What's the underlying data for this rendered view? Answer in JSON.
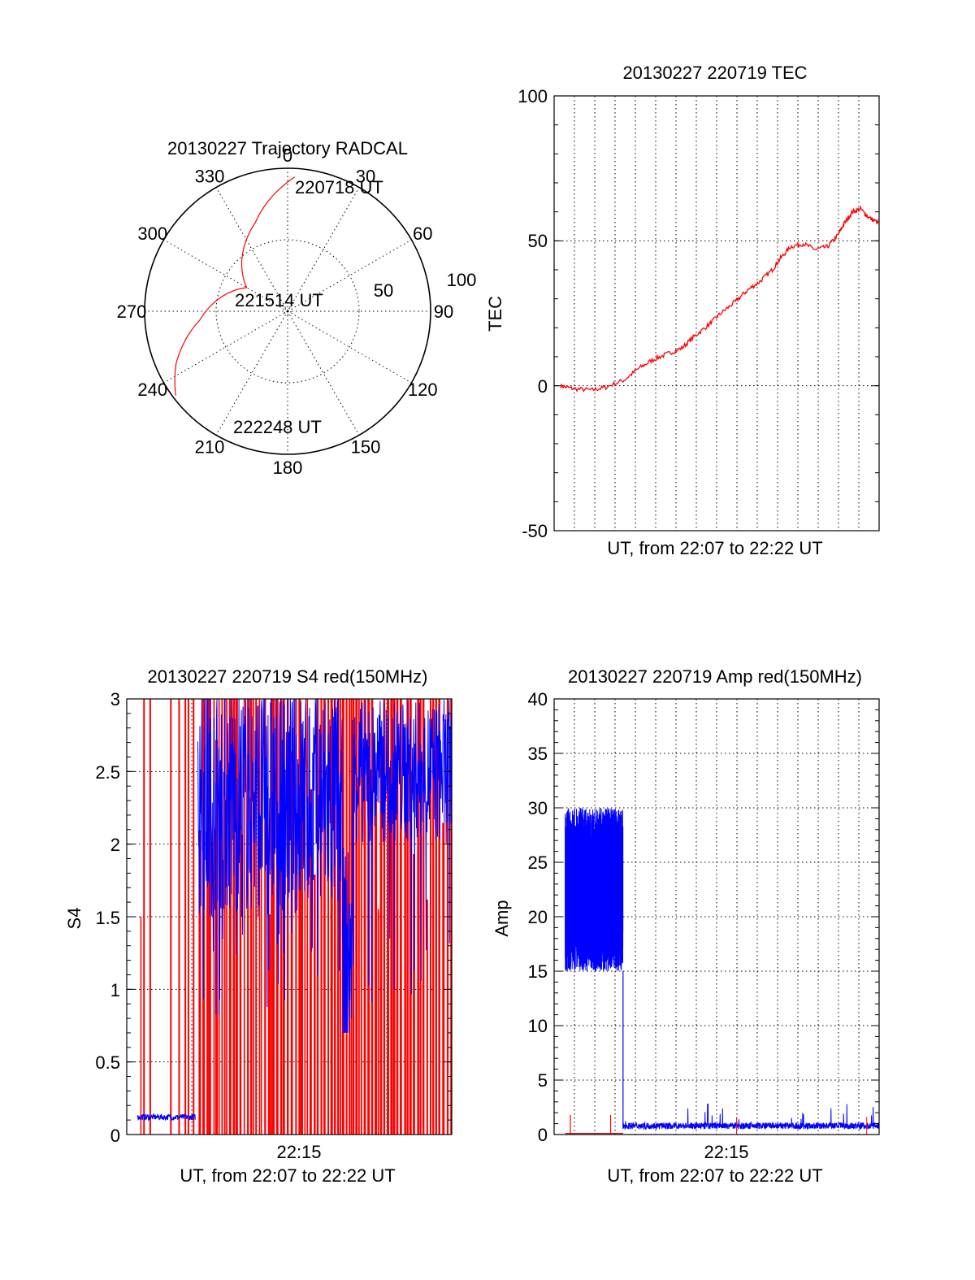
{
  "polar": {
    "title": "20130227 Trajectory RADCAL",
    "azimuth_labels": [
      "0",
      "30",
      "60",
      "90",
      "120",
      "150",
      "180",
      "210",
      "240",
      "270",
      "300",
      "330"
    ],
    "radial_labels": [
      "50",
      "100"
    ],
    "time_labels": {
      "start": "220718 UT",
      "mid": "221514 UT",
      "end": "222248 UT"
    },
    "line_color": "#ff0000"
  },
  "tec": {
    "title": "20130227 220719 TEC",
    "ylabel": "TEC",
    "xlabel": "UT, from 22:07 to 22:22 UT",
    "y_ticks": [
      "100",
      "50",
      "0",
      "-50"
    ],
    "line_color": "#ff0000"
  },
  "s4": {
    "title": "20130227 220719 S4 red(150MHz)",
    "ylabel": "S4",
    "xlabel": "UT, from 22:07 to 22:22 UT",
    "x_tick": "22:15",
    "y_ticks": [
      "3",
      "2.5",
      "2",
      "1.5",
      "1",
      "0.5",
      "0"
    ]
  },
  "amp": {
    "title": "20130227 220719 Amp red(150MHz)",
    "ylabel": "Amp",
    "xlabel": "UT, from 22:07 to 22:22 UT",
    "x_tick": "22:15",
    "y_ticks": [
      "40",
      "35",
      "30",
      "25",
      "20",
      "15",
      "10",
      "5",
      "0"
    ]
  },
  "chart_data": [
    {
      "type": "line",
      "subtype": "polar-trajectory",
      "title": "20130227 Trajectory RADCAL",
      "theta_ticks_deg": [
        0,
        30,
        60,
        90,
        120,
        150,
        180,
        210,
        240,
        270,
        300,
        330
      ],
      "r_ticks": [
        50,
        100
      ],
      "series": [
        {
          "color": "#ff0000",
          "points_az_deg_r": [
            [
              3,
              94
            ],
            [
              340,
              66
            ],
            [
              300,
              33
            ],
            [
              264,
              62
            ],
            [
              245,
              86
            ],
            [
              233,
              98
            ]
          ]
        }
      ],
      "annotations": [
        "220718 UT",
        "221514 UT",
        "222248 UT"
      ]
    },
    {
      "type": "line",
      "title": "20130227 220719 TEC",
      "xlabel": "UT, from 22:07 to 22:22 UT",
      "ylabel": "TEC",
      "xlim": [
        "22:07:19",
        "22:22:48"
      ],
      "ylim": [
        -50,
        100
      ],
      "grid": true,
      "series": [
        {
          "color": "#ff0000",
          "x_min_after_2207": [
            0,
            0.6,
            1.5,
            2.2,
            3.1,
            3.8,
            4.5,
            5.2,
            5.9,
            6.5,
            7.2,
            7.8,
            8.5,
            9.1,
            9.7,
            10.3,
            10.7,
            11.2,
            11.8,
            12.4,
            13.0,
            13.5,
            13.8,
            14.2,
            14.6,
            15.0,
            15.5
          ],
          "y": [
            0,
            -1,
            -1.5,
            -0.5,
            2,
            6,
            9,
            11,
            13,
            17,
            21,
            25,
            29,
            33,
            36,
            40,
            44,
            48,
            49,
            47,
            48,
            52,
            56,
            60,
            61,
            58,
            56
          ]
        }
      ]
    },
    {
      "type": "line",
      "title": "20130227 220719 S4 red(150MHz)",
      "xlabel": "UT, from 22:07 to 22:22 UT",
      "ylabel": "S4",
      "ylim": [
        0,
        3
      ],
      "x_ticks": [
        "22:15"
      ],
      "grid": true,
      "series": [
        {
          "color": "#0000ff",
          "segments": [
            {
              "x_min_after_2207": [
                0.3,
                3.1
              ],
              "level": 0.12
            },
            {
              "x_min_after_2207": [
                3.2,
                10.6
              ],
              "level_range": [
                0.8,
                3.0
              ]
            },
            {
              "x_min_after_2207": [
                10.6,
                15.5
              ],
              "level_range": [
                1.6,
                3.0
              ]
            }
          ]
        },
        {
          "color": "#ff0000",
          "note": "dense vertical spikes 0 to 3 across the full time range"
        }
      ]
    },
    {
      "type": "line",
      "title": "20130227 220719 Amp red(150MHz)",
      "xlabel": "UT, from 22:07 to 22:22 UT",
      "ylabel": "Amp",
      "ylim": [
        0,
        40
      ],
      "x_ticks": [
        "22:15"
      ],
      "grid": true,
      "series": [
        {
          "color": "#0000ff",
          "segments": [
            {
              "x_min_after_2207": [
                0.3,
                3.1
              ],
              "level_range": [
                14,
                30
              ]
            },
            {
              "x_min_after_2207": [
                3.1,
                15.5
              ],
              "level_range": [
                0,
                2.8
              ]
            }
          ]
        },
        {
          "color": "#ff0000",
          "segments": [
            {
              "x_min_after_2207": [
                0.3,
                3.1
              ],
              "level_range": [
                0,
                1.8
              ]
            }
          ]
        }
      ]
    }
  ]
}
